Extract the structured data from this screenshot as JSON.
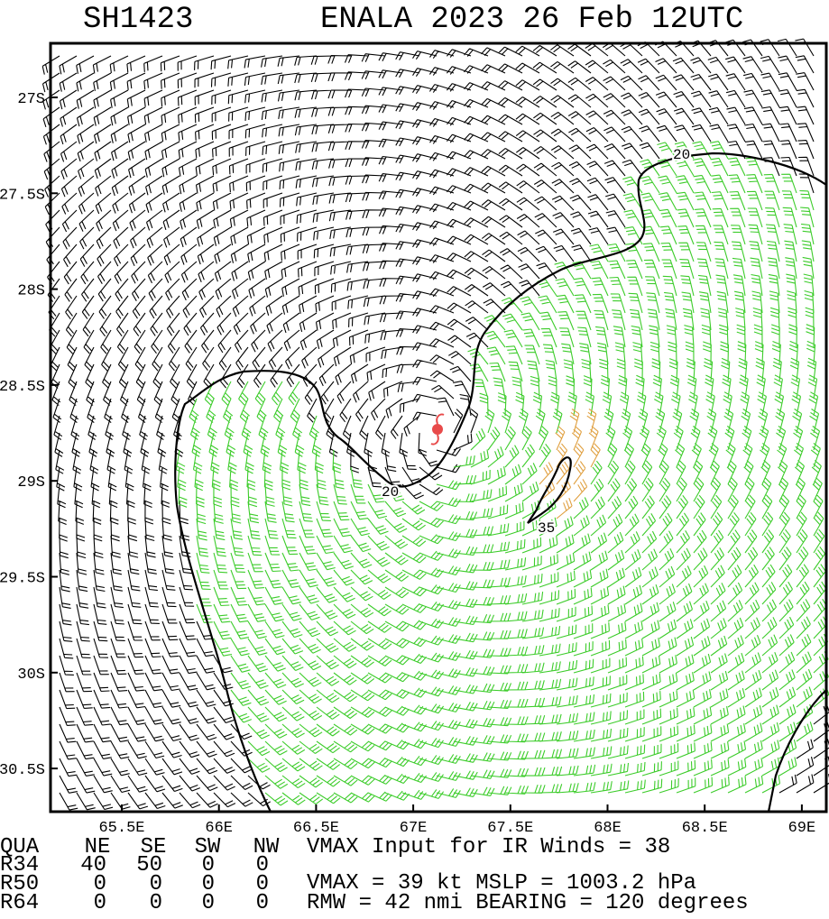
{
  "header": {
    "id": "SH1423",
    "title": "ENALA 2023 26 Feb 12UTC"
  },
  "map": {
    "lon_ticks": [
      "65.5E",
      "66E",
      "66.5E",
      "67E",
      "67.5E",
      "68E",
      "68.5E",
      "69E"
    ],
    "lat_ticks": [
      "27S",
      "27.5S",
      "28S",
      "28.5S",
      "29S",
      "29.5S",
      "30S",
      "30.5S"
    ],
    "contour_labels": [
      "20",
      "20",
      "35"
    ]
  },
  "table": {
    "header": [
      "QUA",
      "NE",
      "SE",
      "SW",
      "NW"
    ],
    "rows": [
      [
        "R34",
        "40",
        "50",
        "0",
        "0"
      ],
      [
        "R50",
        "0",
        "0",
        "0",
        "0"
      ],
      [
        "R64",
        "0",
        "0",
        "0",
        "0"
      ]
    ]
  },
  "info": [
    "VMAX Input for IR Winds =   38",
    "VMAX =    39 kt MSLP = 1003.2 hPa",
    "RMW  =   42 nmi BEARING =  120 degrees"
  ]
}
